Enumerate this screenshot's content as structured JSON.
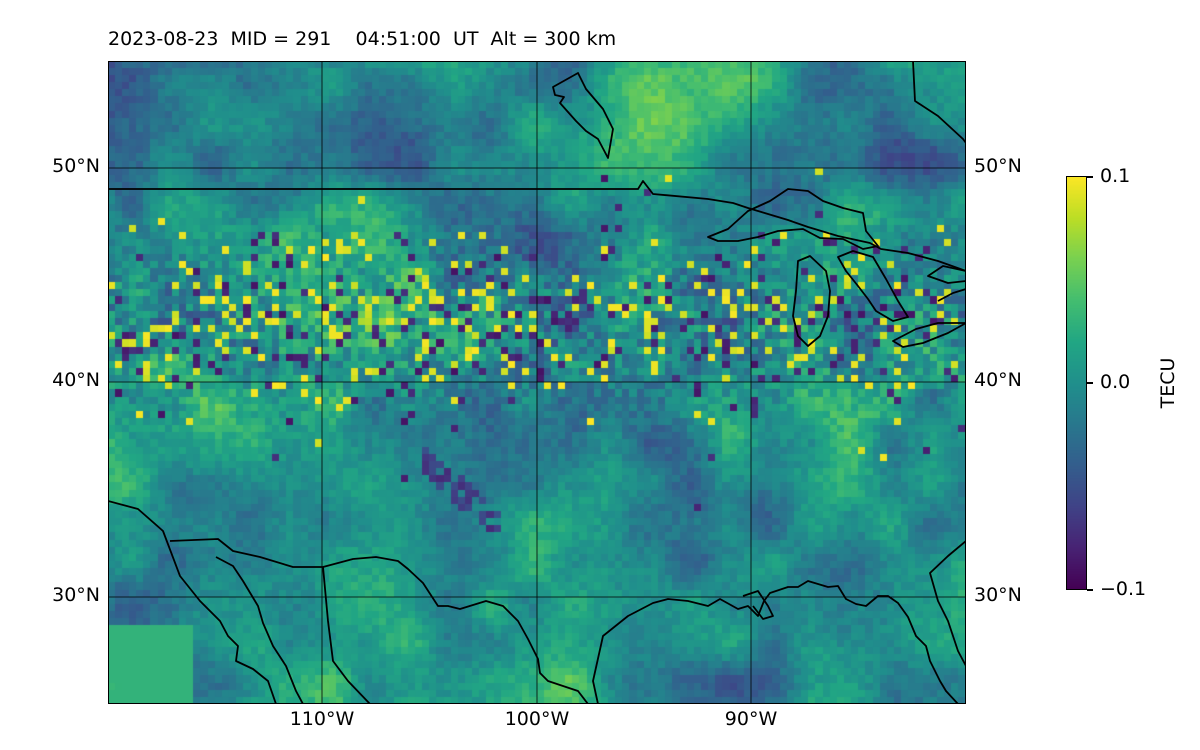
{
  "title": "2023-08-23  MID = 291    04:51:00  UT  Alt = 300 km",
  "map": {
    "lat_range": [
      25,
      55
    ],
    "lon_range": [
      -120,
      -80
    ],
    "gridlines": true,
    "lat_ticks": [
      {
        "value": 50,
        "label": "50°N"
      },
      {
        "value": 40,
        "label": "40°N"
      },
      {
        "value": 30,
        "label": "30°N"
      }
    ],
    "lon_ticks": [
      {
        "value": -110,
        "label": "110°W"
      },
      {
        "value": -100,
        "label": "100°W"
      },
      {
        "value": -90,
        "label": "90°W"
      }
    ],
    "coastlines": "black outline of North American coasts, US-Canada and US-Mexico borders, Great Lakes, Gulf of Mexico",
    "field": "differential TEC perturbation, gridded pixels, viridis colormap; stronger fluctuations between ~40°N and 47°N, clusters near the Great Lakes"
  },
  "colorbar": {
    "label": "TECU",
    "colormap": "viridis",
    "min": -0.1,
    "max": 0.1,
    "ticks": [
      {
        "value": 0.1,
        "label": "0.1"
      },
      {
        "value": 0.0,
        "label": "0.0"
      },
      {
        "value": -0.1,
        "label": "−0.1"
      }
    ]
  }
}
